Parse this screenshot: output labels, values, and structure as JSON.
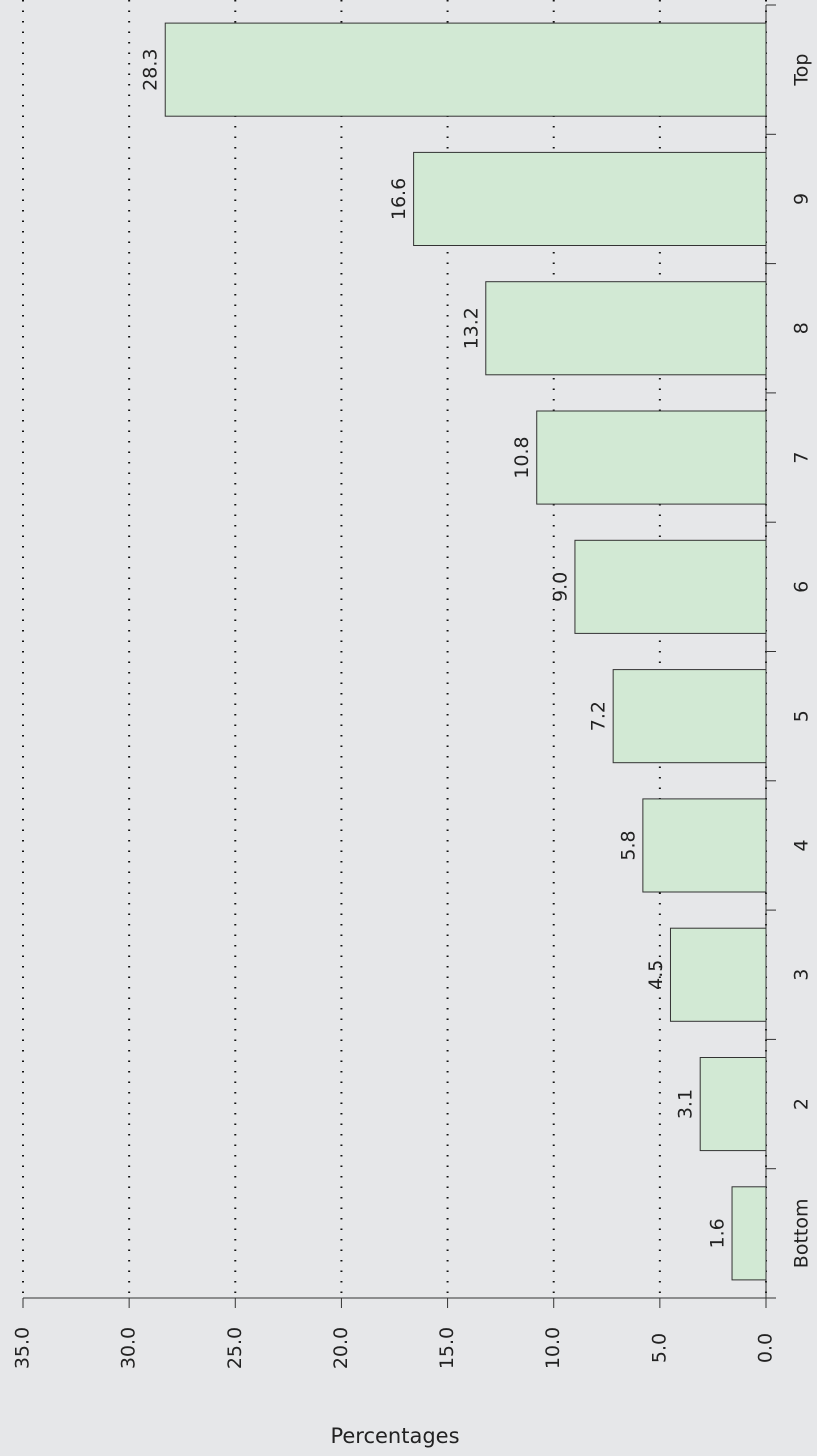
{
  "chart_data": {
    "type": "bar",
    "orientation": "horizontal",
    "categories": [
      "Bottom",
      "2",
      "3",
      "4",
      "5",
      "6",
      "7",
      "8",
      "9",
      "Top"
    ],
    "values": [
      1.6,
      3.1,
      4.5,
      5.8,
      7.2,
      9.0,
      10.8,
      13.2,
      16.6,
      28.3
    ],
    "value_labels": [
      "1.6",
      "3.1",
      "4.5",
      "5.8",
      "7.2",
      "9.0",
      "10.8",
      "13.2",
      "16.6",
      "28.3"
    ],
    "color": "#d2e9d4",
    "xlabel": "Percentages",
    "xlim": [
      0,
      35
    ],
    "xticks": [
      {
        "value": 0,
        "label": "0.0"
      },
      {
        "value": 5,
        "label": "5.0"
      },
      {
        "value": 10,
        "label": "10.0"
      },
      {
        "value": 15,
        "label": "15.0"
      },
      {
        "value": 20,
        "label": "20.0"
      },
      {
        "value": 25,
        "label": "25.0"
      },
      {
        "value": 30,
        "label": "30.0"
      },
      {
        "value": 35,
        "label": "35.0"
      }
    ],
    "grid": true
  }
}
